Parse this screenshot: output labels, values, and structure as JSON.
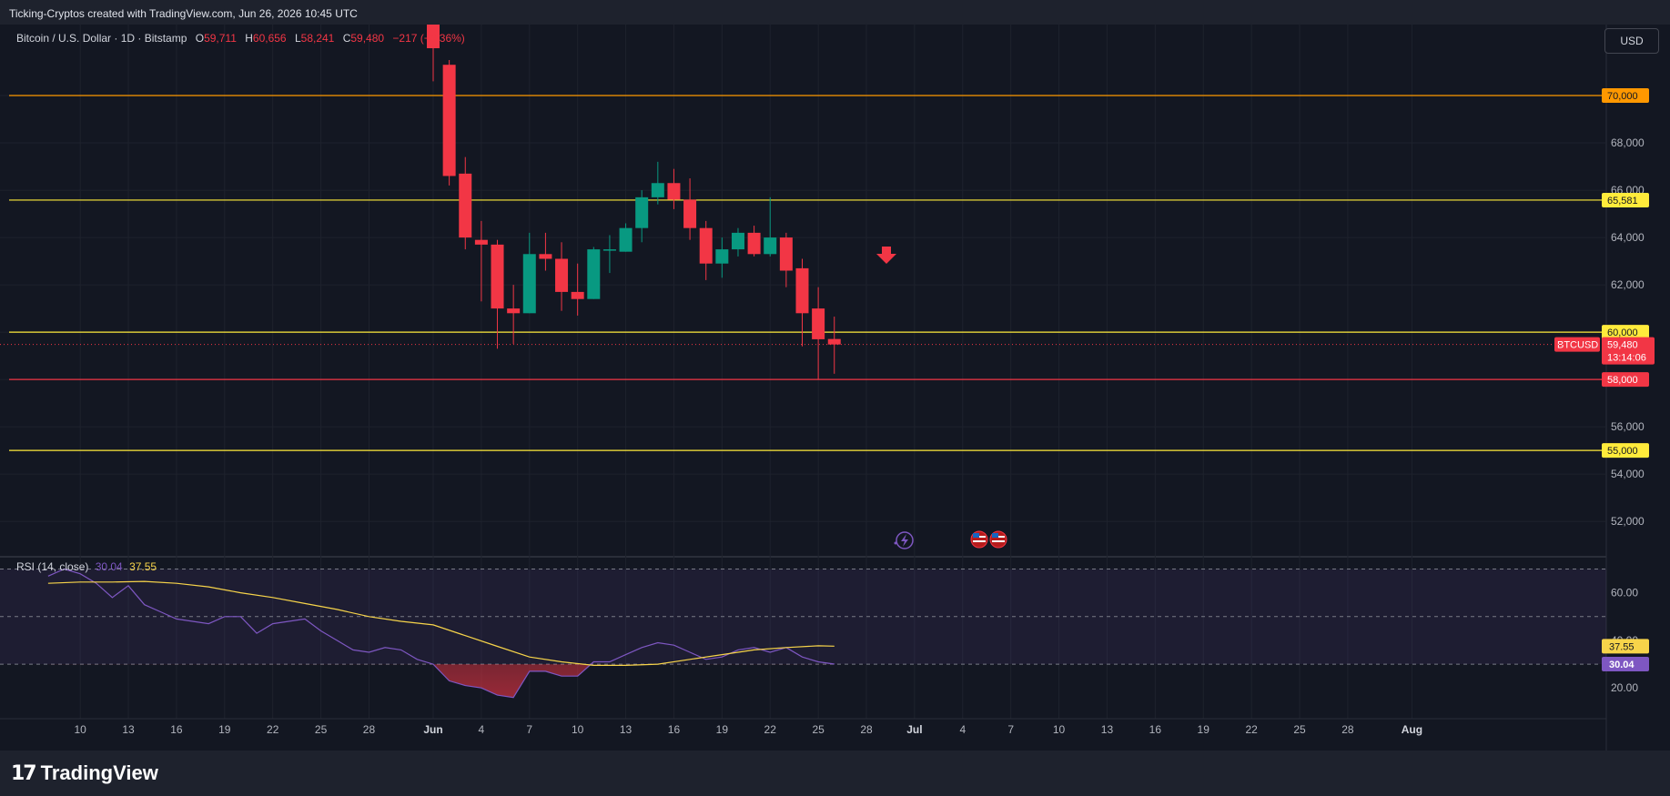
{
  "caption": "Ticking-Cryptos created with TradingView.com, Jun 26, 2026 10:45 UTC",
  "brand": {
    "mark": "17",
    "name": "TradingView"
  },
  "currency_button": "USD",
  "legend": {
    "symbol": "Bitcoin / U.S. Dollar · 1D · Bitstamp",
    "open_label": "O",
    "open": "59,711",
    "high_label": "H",
    "high": "60,656",
    "low_label": "L",
    "low": "58,241",
    "close_label": "C",
    "close": "59,480",
    "change": "−217 (−0.36%)"
  },
  "rsi_legend": {
    "label": "RSI (14, close)",
    "rsi": "30.04",
    "ma": "37.55"
  },
  "last_price": {
    "ticker": "BTCUSD",
    "price": "59,480",
    "countdown": "13:14:06"
  },
  "colors": {
    "up": "#089981",
    "down": "#f23645",
    "bg": "#131722",
    "rsi": "#7e57c2",
    "rsi_ma": "#f7d44a"
  },
  "chart_data": {
    "type": "candlestick",
    "symbol": "BTCUSD",
    "timeframe": "1D",
    "ylim": [
      50700,
      73000
    ],
    "price_ticks": [
      52000,
      54000,
      56000,
      58000,
      60000,
      62000,
      64000,
      66000,
      68000,
      70000
    ],
    "price_tick_labels": [
      "52,000",
      "54,000",
      "56,000",
      "58,000",
      "60,000",
      "62,000",
      "64,000",
      "66,000",
      "68,000",
      "70,000"
    ],
    "x_ticks": [
      {
        "day": -21,
        "label": "10"
      },
      {
        "day": -18,
        "label": "13"
      },
      {
        "day": -15,
        "label": "16"
      },
      {
        "day": -12,
        "label": "19"
      },
      {
        "day": -9,
        "label": "22"
      },
      {
        "day": -6,
        "label": "25"
      },
      {
        "day": -3,
        "label": "28"
      },
      {
        "day": 1,
        "label": "Jun"
      },
      {
        "day": 4,
        "label": "4"
      },
      {
        "day": 7,
        "label": "7"
      },
      {
        "day": 10,
        "label": "10"
      },
      {
        "day": 13,
        "label": "13"
      },
      {
        "day": 16,
        "label": "16"
      },
      {
        "day": 19,
        "label": "19"
      },
      {
        "day": 22,
        "label": "22"
      },
      {
        "day": 25,
        "label": "25"
      },
      {
        "day": 28,
        "label": "28"
      },
      {
        "day": 31,
        "label": "Jul"
      },
      {
        "day": 34,
        "label": "4"
      },
      {
        "day": 37,
        "label": "7"
      },
      {
        "day": 40,
        "label": "10"
      },
      {
        "day": 43,
        "label": "13"
      },
      {
        "day": 46,
        "label": "16"
      },
      {
        "day": 49,
        "label": "19"
      },
      {
        "day": 52,
        "label": "22"
      },
      {
        "day": 55,
        "label": "25"
      },
      {
        "day": 58,
        "label": "28"
      },
      {
        "day": 62,
        "label": "Aug"
      }
    ],
    "candles": [
      {
        "day": 1,
        "o": 73200,
        "h": 73400,
        "l": 70600,
        "c": 72000
      },
      {
        "day": 2,
        "o": 71300,
        "h": 71500,
        "l": 66200,
        "c": 66600
      },
      {
        "day": 3,
        "o": 66700,
        "h": 67400,
        "l": 63500,
        "c": 64000
      },
      {
        "day": 4,
        "o": 63900,
        "h": 64700,
        "l": 61300,
        "c": 63700
      },
      {
        "day": 5,
        "o": 63700,
        "h": 63900,
        "l": 59300,
        "c": 61000
      },
      {
        "day": 6,
        "o": 61000,
        "h": 62000,
        "l": 59500,
        "c": 60800
      },
      {
        "day": 7,
        "o": 60800,
        "h": 64200,
        "l": 60800,
        "c": 63300
      },
      {
        "day": 8,
        "o": 63300,
        "h": 64200,
        "l": 62600,
        "c": 63100
      },
      {
        "day": 9,
        "o": 63100,
        "h": 63800,
        "l": 60900,
        "c": 61700
      },
      {
        "day": 10,
        "o": 61700,
        "h": 62900,
        "l": 60700,
        "c": 61400
      },
      {
        "day": 11,
        "o": 61400,
        "h": 63600,
        "l": 61400,
        "c": 63500
      },
      {
        "day": 12,
        "o": 63500,
        "h": 64100,
        "l": 62500,
        "c": 63500
      },
      {
        "day": 13,
        "o": 63400,
        "h": 64600,
        "l": 63400,
        "c": 64400
      },
      {
        "day": 14,
        "o": 64400,
        "h": 66000,
        "l": 63800,
        "c": 65700
      },
      {
        "day": 15,
        "o": 65700,
        "h": 67200,
        "l": 65400,
        "c": 66300
      },
      {
        "day": 16,
        "o": 66300,
        "h": 66900,
        "l": 65200,
        "c": 65600
      },
      {
        "day": 17,
        "o": 65600,
        "h": 66500,
        "l": 63900,
        "c": 64400
      },
      {
        "day": 18,
        "o": 64400,
        "h": 64700,
        "l": 62200,
        "c": 62900
      },
      {
        "day": 19,
        "o": 62900,
        "h": 64000,
        "l": 62300,
        "c": 63500
      },
      {
        "day": 20,
        "o": 63500,
        "h": 64400,
        "l": 63200,
        "c": 64200
      },
      {
        "day": 21,
        "o": 64200,
        "h": 64500,
        "l": 63200,
        "c": 63300
      },
      {
        "day": 22,
        "o": 63300,
        "h": 65700,
        "l": 63200,
        "c": 64000
      },
      {
        "day": 23,
        "o": 64000,
        "h": 64200,
        "l": 61900,
        "c": 62600
      },
      {
        "day": 24,
        "o": 62700,
        "h": 63100,
        "l": 59400,
        "c": 60800
      },
      {
        "day": 25,
        "o": 61000,
        "h": 61900,
        "l": 58000,
        "c": 59700
      },
      {
        "day": 26,
        "o": 59711,
        "h": 60656,
        "l": 58241,
        "c": 59480
      }
    ],
    "horizontal_levels": [
      {
        "price": 70000,
        "label": "70,000",
        "color": "#ff9800",
        "tag_bg": "#ff9800",
        "tag_fg": "#131722"
      },
      {
        "price": 65581,
        "label": "65,581",
        "color": "#ffeb3b",
        "tag_bg": "#ffeb3b",
        "tag_fg": "#131722"
      },
      {
        "price": 60000,
        "label": "60,000",
        "color": "#ffeb3b",
        "tag_bg": "#ffeb3b",
        "tag_fg": "#131722"
      },
      {
        "price": 58000,
        "label": "58,000",
        "color": "#f23645",
        "tag_bg": "#f23645",
        "tag_fg": "#ffffff"
      },
      {
        "price": 55000,
        "label": "55,000",
        "color": "#ffeb3b",
        "tag_bg": "#ffeb3b",
        "tag_fg": "#131722"
      }
    ],
    "last_price": 59480,
    "rsi": {
      "ylim": [
        9,
        74
      ],
      "tick_values": [
        20,
        40,
        60
      ],
      "tick_labels": [
        "20.00",
        "40.00",
        "60.00"
      ],
      "bands": [
        30,
        50,
        70
      ],
      "rsi_days": [
        -23,
        -22,
        -21,
        -20,
        -19,
        -18,
        -17,
        -16,
        -15,
        -14,
        -13,
        -12,
        -11,
        -10,
        -9,
        -8,
        -7,
        -6,
        -5,
        -4,
        -3,
        -2,
        -1,
        0,
        1,
        2,
        3,
        4,
        5,
        6,
        7,
        8,
        9,
        10,
        11,
        12,
        13,
        14,
        15,
        16,
        17,
        18,
        19,
        20,
        21,
        22,
        23,
        24,
        25,
        26
      ],
      "rsi_values": [
        67,
        70,
        68,
        64,
        58,
        63,
        55,
        52,
        49,
        48,
        47,
        50,
        50,
        43,
        47,
        48,
        49,
        44,
        40,
        36,
        35,
        37,
        36,
        32,
        30,
        23,
        21,
        20,
        17,
        16,
        27,
        27,
        25,
        25,
        31,
        31,
        34,
        37,
        39,
        38,
        35,
        32,
        33,
        36,
        37,
        35,
        37,
        33,
        31,
        30.04
      ],
      "ma_days": [
        -23,
        -21,
        -19,
        -17,
        -15,
        -13,
        -11,
        -9,
        -7,
        -5,
        -3,
        -1,
        1,
        3,
        5,
        7,
        9,
        11,
        13,
        15,
        17,
        19,
        21,
        23,
        25,
        26
      ],
      "ma_values": [
        64,
        64.5,
        64.5,
        64.8,
        64,
        62.5,
        60,
        58,
        55.5,
        53,
        50,
        48,
        46.5,
        42,
        37.5,
        33,
        31,
        29.5,
        29.5,
        30,
        32,
        34,
        36,
        37,
        37.7,
        37.55
      ]
    }
  }
}
